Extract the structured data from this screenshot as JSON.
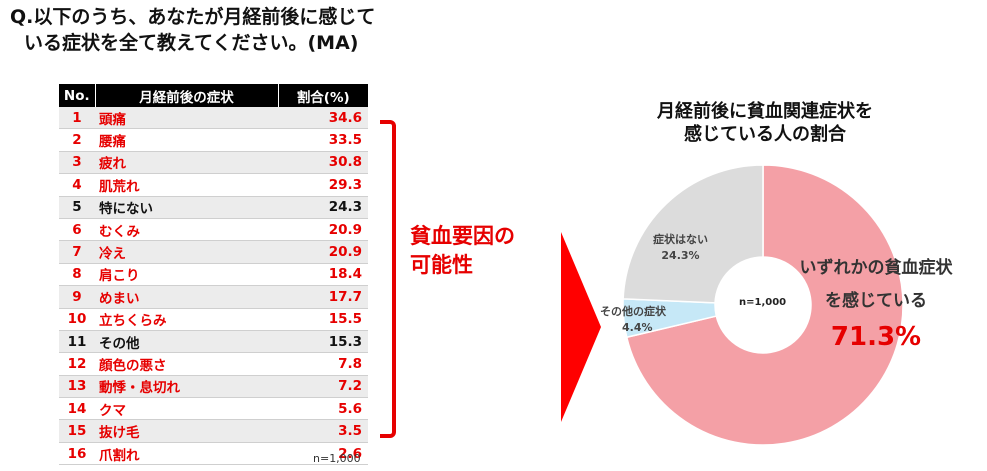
{
  "question": {
    "line1": "Q.以下のうち、あなたが月経前後に感じて",
    "line2": "いる症状を全て教えてください。(MA)"
  },
  "table": {
    "headers": [
      "No.",
      "月経前後の症状",
      "割合(%)"
    ],
    "rows": [
      {
        "no": "1",
        "name": "頭痛",
        "value": "34.6",
        "anemia": true
      },
      {
        "no": "2",
        "name": "腰痛",
        "value": "33.5",
        "anemia": true
      },
      {
        "no": "3",
        "name": "疲れ",
        "value": "30.8",
        "anemia": true
      },
      {
        "no": "4",
        "name": "肌荒れ",
        "value": "29.3",
        "anemia": true
      },
      {
        "no": "5",
        "name": "特にない",
        "value": "24.3",
        "anemia": false
      },
      {
        "no": "6",
        "name": "むくみ",
        "value": "20.9",
        "anemia": true
      },
      {
        "no": "7",
        "name": "冷え",
        "value": "20.9",
        "anemia": true
      },
      {
        "no": "8",
        "name": "肩こり",
        "value": "18.4",
        "anemia": true
      },
      {
        "no": "9",
        "name": "めまい",
        "value": "17.7",
        "anemia": true
      },
      {
        "no": "10",
        "name": "立ちくらみ",
        "value": "15.5",
        "anemia": true
      },
      {
        "no": "11",
        "name": "その他",
        "value": "15.3",
        "anemia": false
      },
      {
        "no": "12",
        "name": "顔色の悪さ",
        "value": "7.8",
        "anemia": true
      },
      {
        "no": "13",
        "name": "動悸・息切れ",
        "value": "7.2",
        "anemia": true
      },
      {
        "no": "14",
        "name": "クマ",
        "value": "5.6",
        "anemia": true
      },
      {
        "no": "15",
        "name": "抜け毛",
        "value": "3.5",
        "anemia": true
      },
      {
        "no": "16",
        "name": "爪割れ",
        "value": "2.6",
        "anemia": true
      }
    ],
    "n_note": "n=1,000"
  },
  "bracket_label": {
    "line1": "貧血要因の",
    "line2": "可能性"
  },
  "chart_data": {
    "type": "pie",
    "donut": true,
    "title_line1": "月経前後に貧血関連症状を",
    "title_line2": "感じている人の割合",
    "center_text": "n=1,000",
    "slices": [
      {
        "label_line1": "いずれかの貧血症状",
        "label_line2": "を感じている",
        "value": 71.3,
        "value_label": "71.3%",
        "color": "#f4a0a6"
      },
      {
        "label_line1": "その他の症状",
        "value": 4.4,
        "value_label": "4.4%",
        "color": "#c6e8f7"
      },
      {
        "label_line1": "症状はない",
        "value": 24.3,
        "value_label": "24.3%",
        "color": "#dcdcdc"
      }
    ]
  },
  "colors": {
    "accent_red": "#e60000",
    "arrow_red": "#ff0000"
  }
}
